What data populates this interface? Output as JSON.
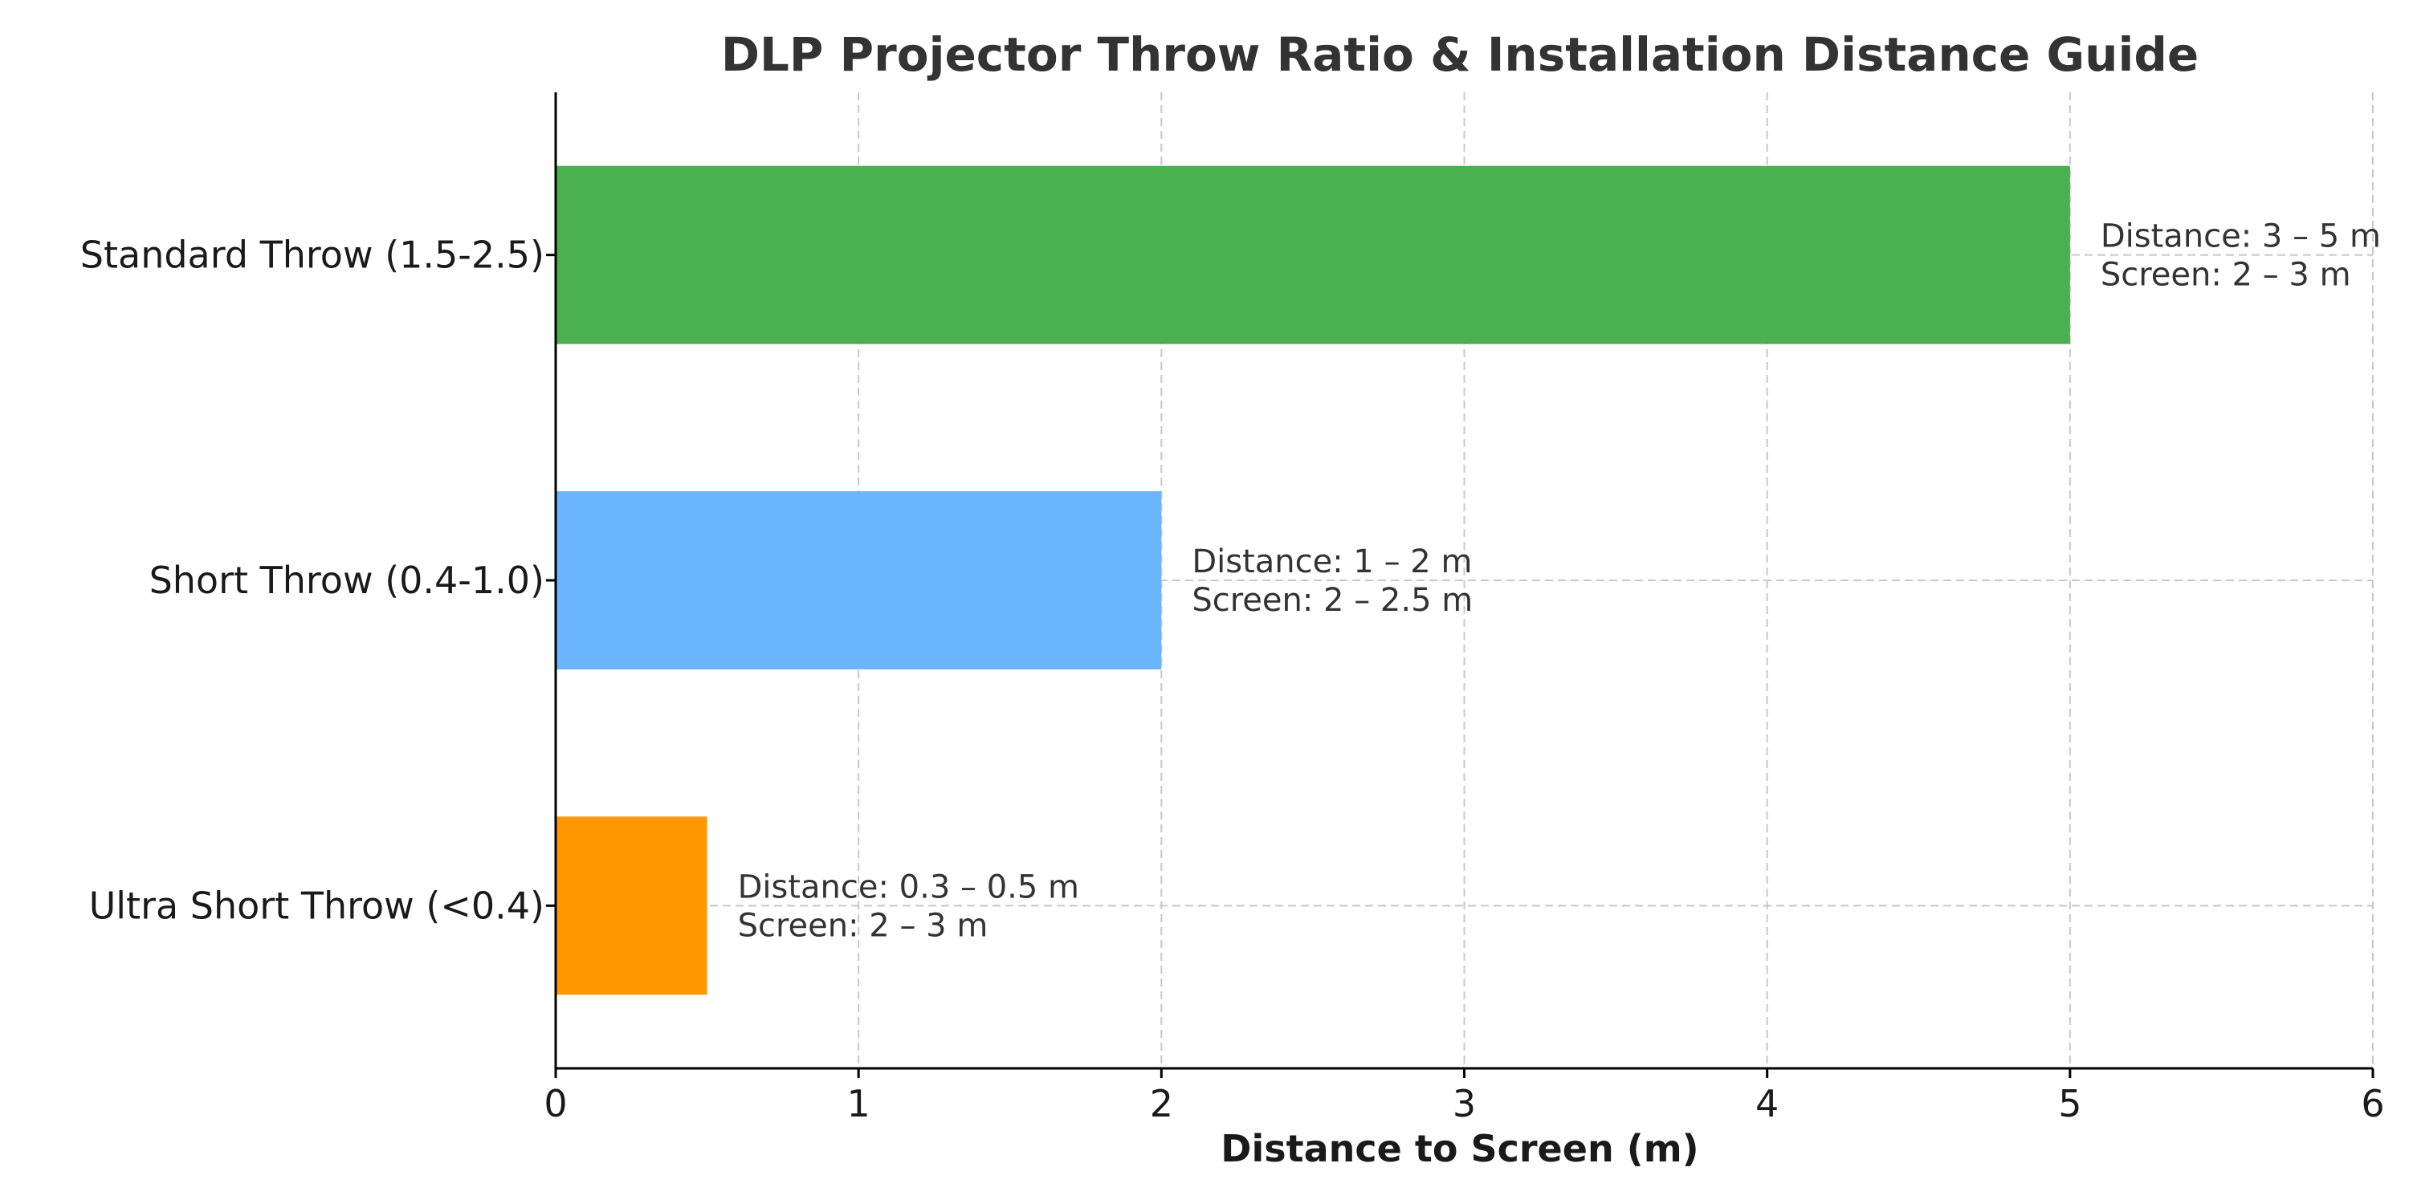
{
  "chart_data": {
    "type": "bar",
    "orientation": "horizontal",
    "title": "DLP Projector Throw Ratio & Installation Distance Guide",
    "xlabel": "Distance to Screen (m)",
    "ylabel": "",
    "xlim": [
      0,
      6
    ],
    "xticks": [
      "0",
      "1",
      "2",
      "3",
      "4",
      "5",
      "6"
    ],
    "grid": true,
    "categories": [
      "Ultra Short Throw (<0.4)",
      "Short Throw (0.4-1.0)",
      "Standard Throw (1.5-2.5)"
    ],
    "values": [
      0.5,
      2,
      5
    ],
    "colors": [
      "#ff9800",
      "#6bb5ff",
      "#4caf50"
    ],
    "annotations": [
      {
        "line1": "Distance: 0.3 – 0.5 m",
        "line2": "Screen: 2 – 3 m"
      },
      {
        "line1": "Distance: 1 – 2 m",
        "line2": "Screen: 2 – 2.5 m"
      },
      {
        "line1": "Distance: 3 – 5 m",
        "line2": "Screen: 2 – 3 m"
      }
    ]
  }
}
